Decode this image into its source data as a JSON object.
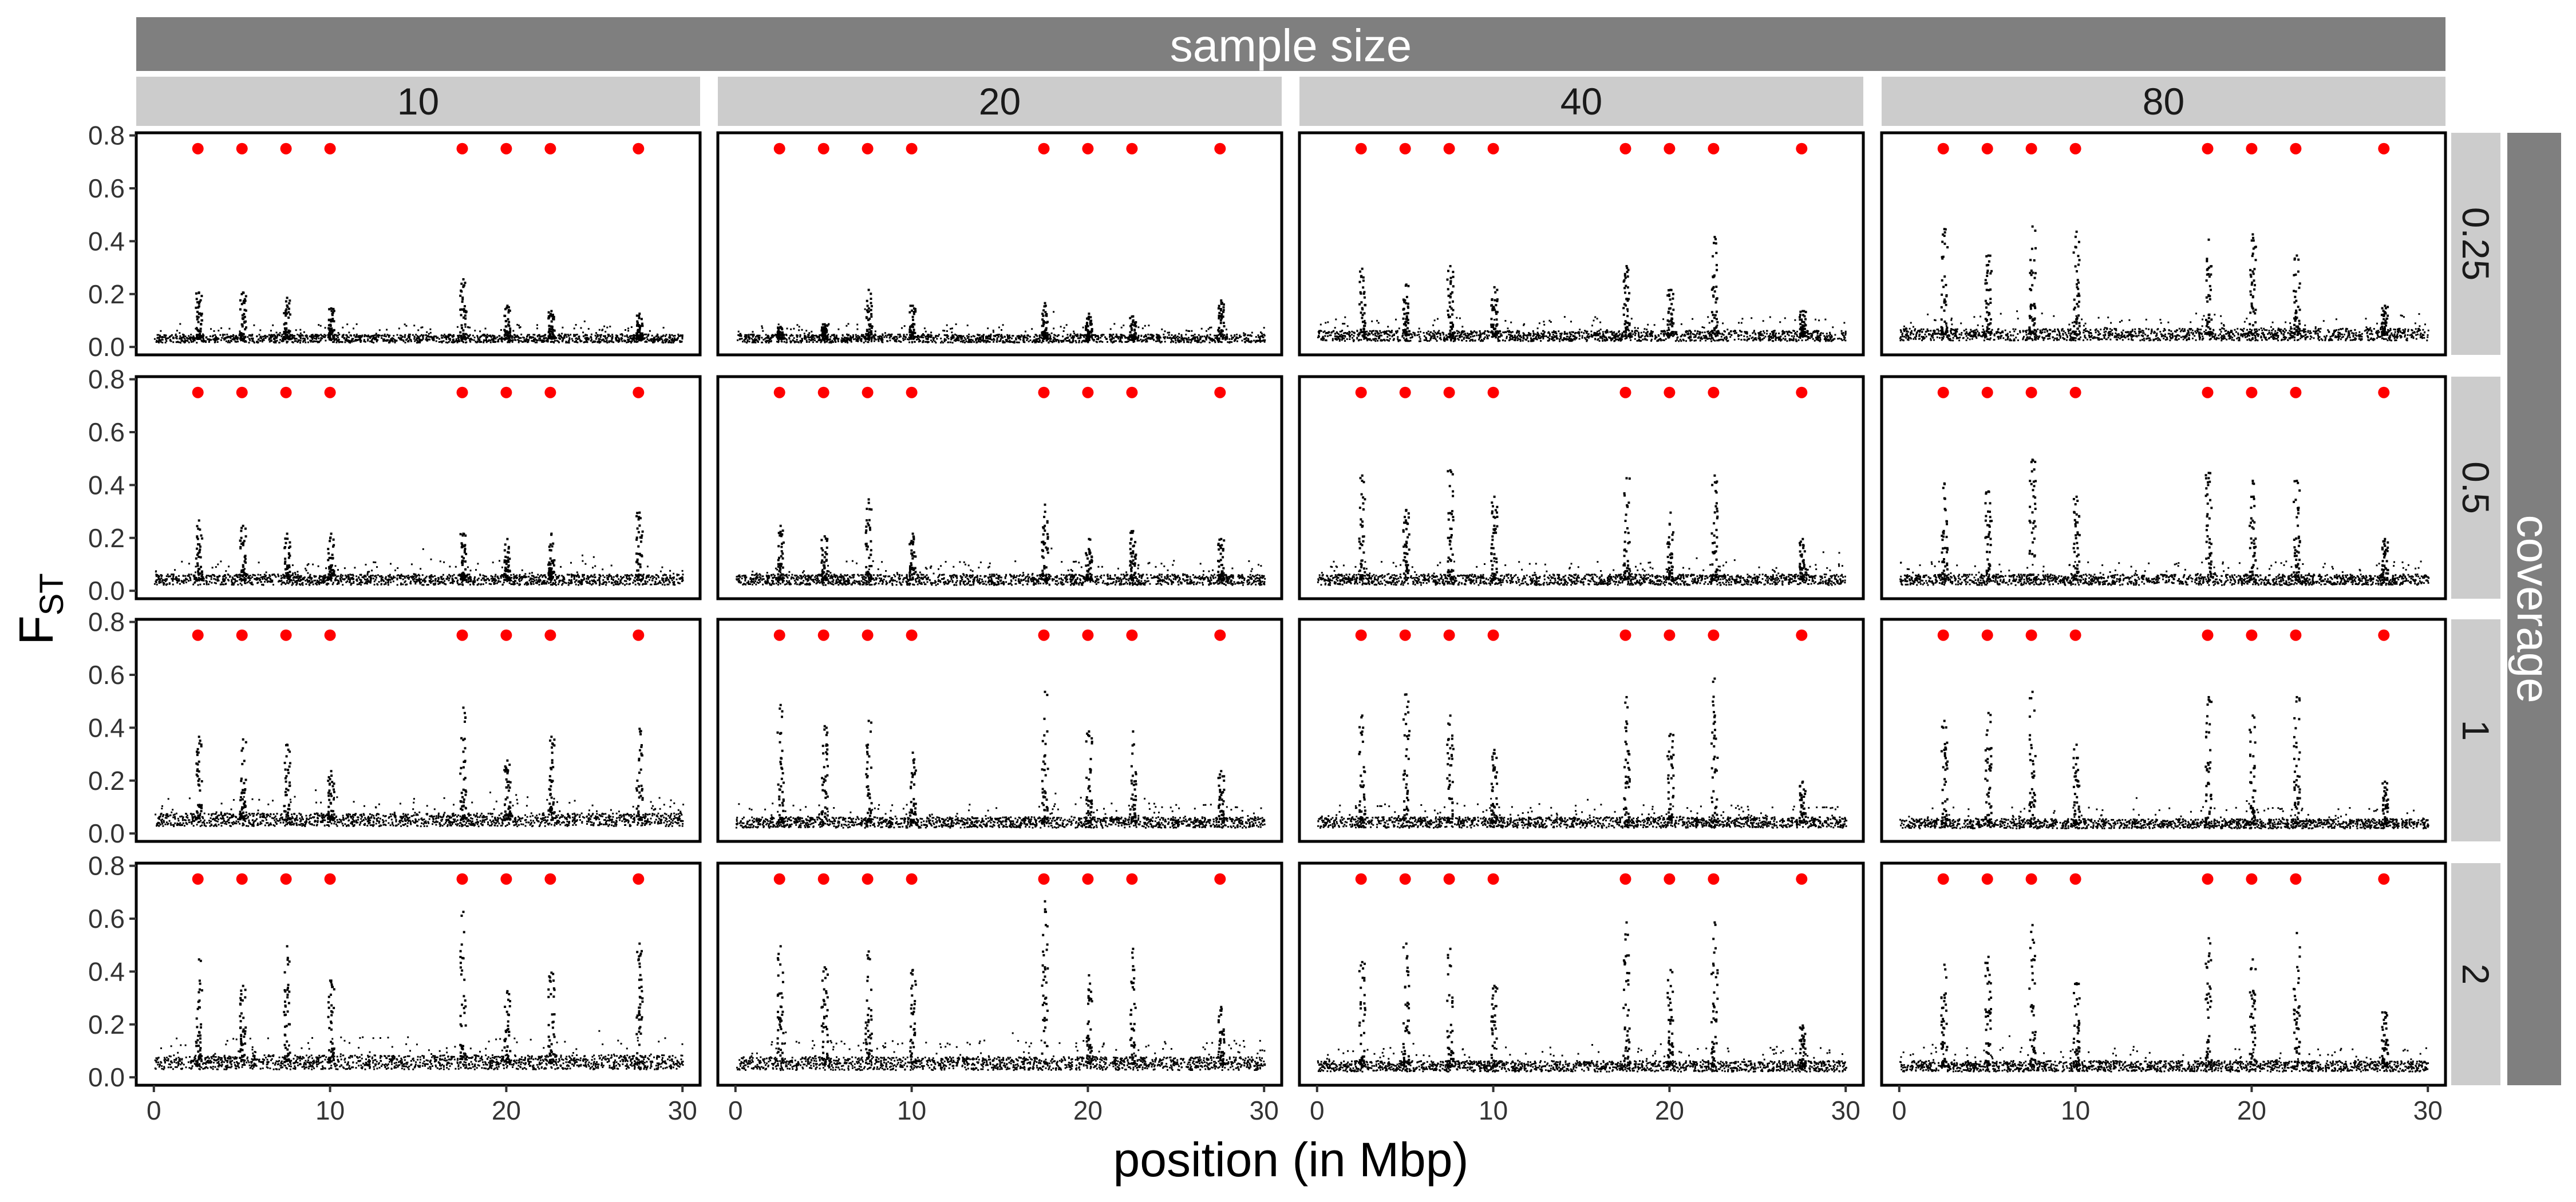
{
  "chart_data": {
    "type": "scatter",
    "layout": "facet_grid",
    "column_facet_title": "sample size",
    "row_facet_title": "coverage",
    "column_facets": [
      "10",
      "20",
      "40",
      "80"
    ],
    "row_facets": [
      "0.25",
      "0.5",
      "1",
      "2"
    ],
    "xlabel": "position (in Mbp)",
    "ylabel": {
      "main": "F",
      "subscript": "ST"
    },
    "xlim": [
      -1,
      31
    ],
    "ylim": [
      -0.03,
      0.81
    ],
    "x_ticks": [
      0,
      10,
      20,
      30
    ],
    "x_tick_labels": [
      "0",
      "10",
      "20",
      "30"
    ],
    "y_ticks": [
      0,
      0.2,
      0.4,
      0.6,
      0.8
    ],
    "y_tick_labels": [
      "0.0",
      "0.2",
      "0.4",
      "0.6",
      "0.8"
    ],
    "selected_sites": {
      "marker_color": "#ff0000",
      "y": 0.75,
      "x": [
        2.5,
        5,
        7.5,
        10,
        17.5,
        20,
        22.5,
        27.5
      ]
    },
    "baseline_fst": [
      [
        0.035,
        0.035,
        0.045,
        0.05
      ],
      [
        0.045,
        0.045,
        0.045,
        0.045
      ],
      [
        0.055,
        0.045,
        0.045,
        0.04
      ],
      [
        0.06,
        0.055,
        0.045,
        0.045
      ]
    ],
    "peak_max_fst": [
      [
        [
          0.21,
          0.21,
          0.19,
          0.15,
          0.26,
          0.16,
          0.14,
          0.13
        ],
        [
          0.08,
          0.09,
          0.22,
          0.16,
          0.17,
          0.13,
          0.12,
          0.18
        ],
        [
          0.3,
          0.24,
          0.31,
          0.23,
          0.31,
          0.22,
          0.42,
          0.14
        ],
        [
          0.45,
          0.35,
          0.46,
          0.44,
          0.41,
          0.43,
          0.35,
          0.16
        ]
      ],
      [
        [
          0.27,
          0.25,
          0.22,
          0.22,
          0.22,
          0.2,
          0.22,
          0.3
        ],
        [
          0.25,
          0.21,
          0.35,
          0.22,
          0.33,
          0.2,
          0.23,
          0.2
        ],
        [
          0.44,
          0.31,
          0.46,
          0.36,
          0.43,
          0.3,
          0.44,
          0.2
        ],
        [
          0.41,
          0.38,
          0.5,
          0.36,
          0.45,
          0.42,
          0.42,
          0.2
        ]
      ],
      [
        [
          0.37,
          0.36,
          0.34,
          0.24,
          0.48,
          0.28,
          0.37,
          0.4
        ],
        [
          0.49,
          0.41,
          0.43,
          0.31,
          0.54,
          0.39,
          0.39,
          0.24
        ],
        [
          0.45,
          0.53,
          0.45,
          0.32,
          0.52,
          0.38,
          0.59,
          0.2
        ],
        [
          0.43,
          0.46,
          0.54,
          0.34,
          0.52,
          0.45,
          0.52,
          0.2
        ]
      ],
      [
        [
          0.45,
          0.35,
          0.5,
          0.37,
          0.63,
          0.33,
          0.4,
          0.51
        ],
        [
          0.5,
          0.42,
          0.48,
          0.41,
          0.67,
          0.39,
          0.49,
          0.27
        ],
        [
          0.44,
          0.51,
          0.49,
          0.35,
          0.59,
          0.41,
          0.59,
          0.2
        ],
        [
          0.43,
          0.46,
          0.58,
          0.36,
          0.53,
          0.45,
          0.55,
          0.25
        ]
      ]
    ]
  }
}
